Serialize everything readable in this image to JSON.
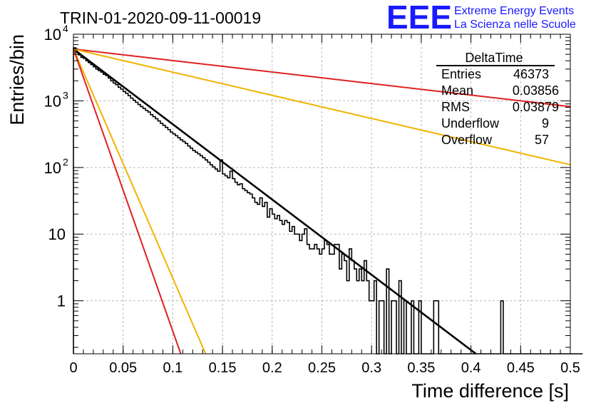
{
  "header": {
    "run_title": "TRIN-01-2020-09-11-00019",
    "logo_text": "EEE",
    "logo_line1": "Extreme Energy Events",
    "logo_line2": "La Scienza nelle Scuole"
  },
  "stats_box": {
    "title": "DeltaTime",
    "rows": [
      {
        "label": "Entries",
        "value": "46373"
      },
      {
        "label": "Mean",
        "value": "0.03856"
      },
      {
        "label": "RMS",
        "value": "0.03879"
      },
      {
        "label": "Underflow",
        "value": "9"
      },
      {
        "label": "Overflow",
        "value": "57"
      }
    ]
  },
  "chart_data": {
    "type": "line",
    "title": "TRIN-01-2020-09-11-00019",
    "xlabel": "Time difference [s]",
    "ylabel": "Entries/bin",
    "xlim": [
      0,
      0.5
    ],
    "ylim": [
      0.16,
      10000
    ],
    "yscale": "log",
    "grid": true,
    "x_ticks": [
      {
        "v": 0,
        "label": "0"
      },
      {
        "v": 0.05,
        "label": "0.05"
      },
      {
        "v": 0.1,
        "label": "0.1"
      },
      {
        "v": 0.15,
        "label": "0.15"
      },
      {
        "v": 0.2,
        "label": "0.2"
      },
      {
        "v": 0.25,
        "label": "0.25"
      },
      {
        "v": 0.3,
        "label": "0.3"
      },
      {
        "v": 0.35,
        "label": "0.35"
      },
      {
        "v": 0.4,
        "label": "0.4"
      },
      {
        "v": 0.45,
        "label": "0.45"
      },
      {
        "v": 0.5,
        "label": "0.5"
      }
    ],
    "y_ticks": [
      {
        "v": 1,
        "label": "1"
      },
      {
        "v": 10,
        "label": "10"
      },
      {
        "v": 100,
        "base": "10",
        "exp": "2"
      },
      {
        "v": 1000,
        "base": "10",
        "exp": "3"
      },
      {
        "v": 10000,
        "base": "10",
        "exp": "4"
      }
    ],
    "histogram": {
      "bin_width": 0.0025,
      "counts": [
        6250,
        5300,
        4900,
        4500,
        4350,
        4000,
        3750,
        3500,
        3250,
        3000,
        2850,
        2700,
        2500,
        2400,
        2200,
        2000,
        1850,
        1750,
        1600,
        1500,
        1380,
        1300,
        1200,
        1100,
        1020,
        950,
        880,
        820,
        770,
        720,
        680,
        620,
        580,
        540,
        500,
        460,
        430,
        400,
        370,
        340,
        320,
        300,
        280,
        260,
        245,
        230,
        210,
        195,
        180,
        170,
        160,
        150,
        140,
        130,
        120,
        110,
        102,
        95,
        88,
        130,
        80,
        75,
        70,
        88,
        68,
        60,
        55,
        57,
        48,
        45,
        42,
        40,
        35,
        30,
        28,
        35,
        26,
        30,
        18,
        24,
        20,
        17,
        19,
        16,
        14,
        16,
        15,
        11,
        13,
        10,
        10,
        8,
        10,
        12,
        7,
        6,
        6,
        7,
        6,
        5,
        6,
        8,
        7,
        5,
        5,
        7,
        7,
        3,
        5,
        4,
        2,
        6,
        4,
        3,
        2,
        3,
        2,
        4,
        2,
        1,
        1,
        2,
        0,
        1,
        1,
        0,
        3,
        0,
        1,
        1,
        0,
        2,
        0,
        1,
        0,
        0,
        1,
        0,
        0,
        1,
        0,
        0,
        0,
        0,
        0,
        1,
        1,
        0,
        0,
        0,
        0,
        0,
        0,
        0,
        0,
        0,
        0,
        0,
        0,
        0,
        0,
        0,
        0,
        0,
        0,
        0,
        0,
        0,
        0,
        0,
        0,
        0,
        1,
        0,
        0,
        0,
        0,
        0,
        0,
        0,
        0,
        0,
        0,
        0,
        0,
        0,
        0,
        0,
        0,
        0,
        0,
        0,
        0,
        0,
        0,
        0,
        0,
        0,
        0,
        0,
        0,
        0,
        0,
        0,
        0
      ]
    },
    "series": [
      {
        "color": "#000000",
        "points": [
          [
            0.0,
            6000
          ],
          [
            0.405,
            0.16
          ]
        ]
      },
      {
        "color": "#e02020",
        "points": [
          [
            0.0,
            6000
          ],
          [
            0.5,
            820
          ]
        ]
      },
      {
        "color": "#f0b400",
        "points": [
          [
            0.0,
            6000
          ],
          [
            0.5,
            110
          ]
        ]
      },
      {
        "color": "#f0b400",
        "points": [
          [
            0.0,
            6000
          ],
          [
            0.133,
            0.16
          ]
        ]
      },
      {
        "color": "#e02020",
        "points": [
          [
            0.0,
            6000
          ],
          [
            0.108,
            0.16
          ]
        ]
      }
    ]
  }
}
